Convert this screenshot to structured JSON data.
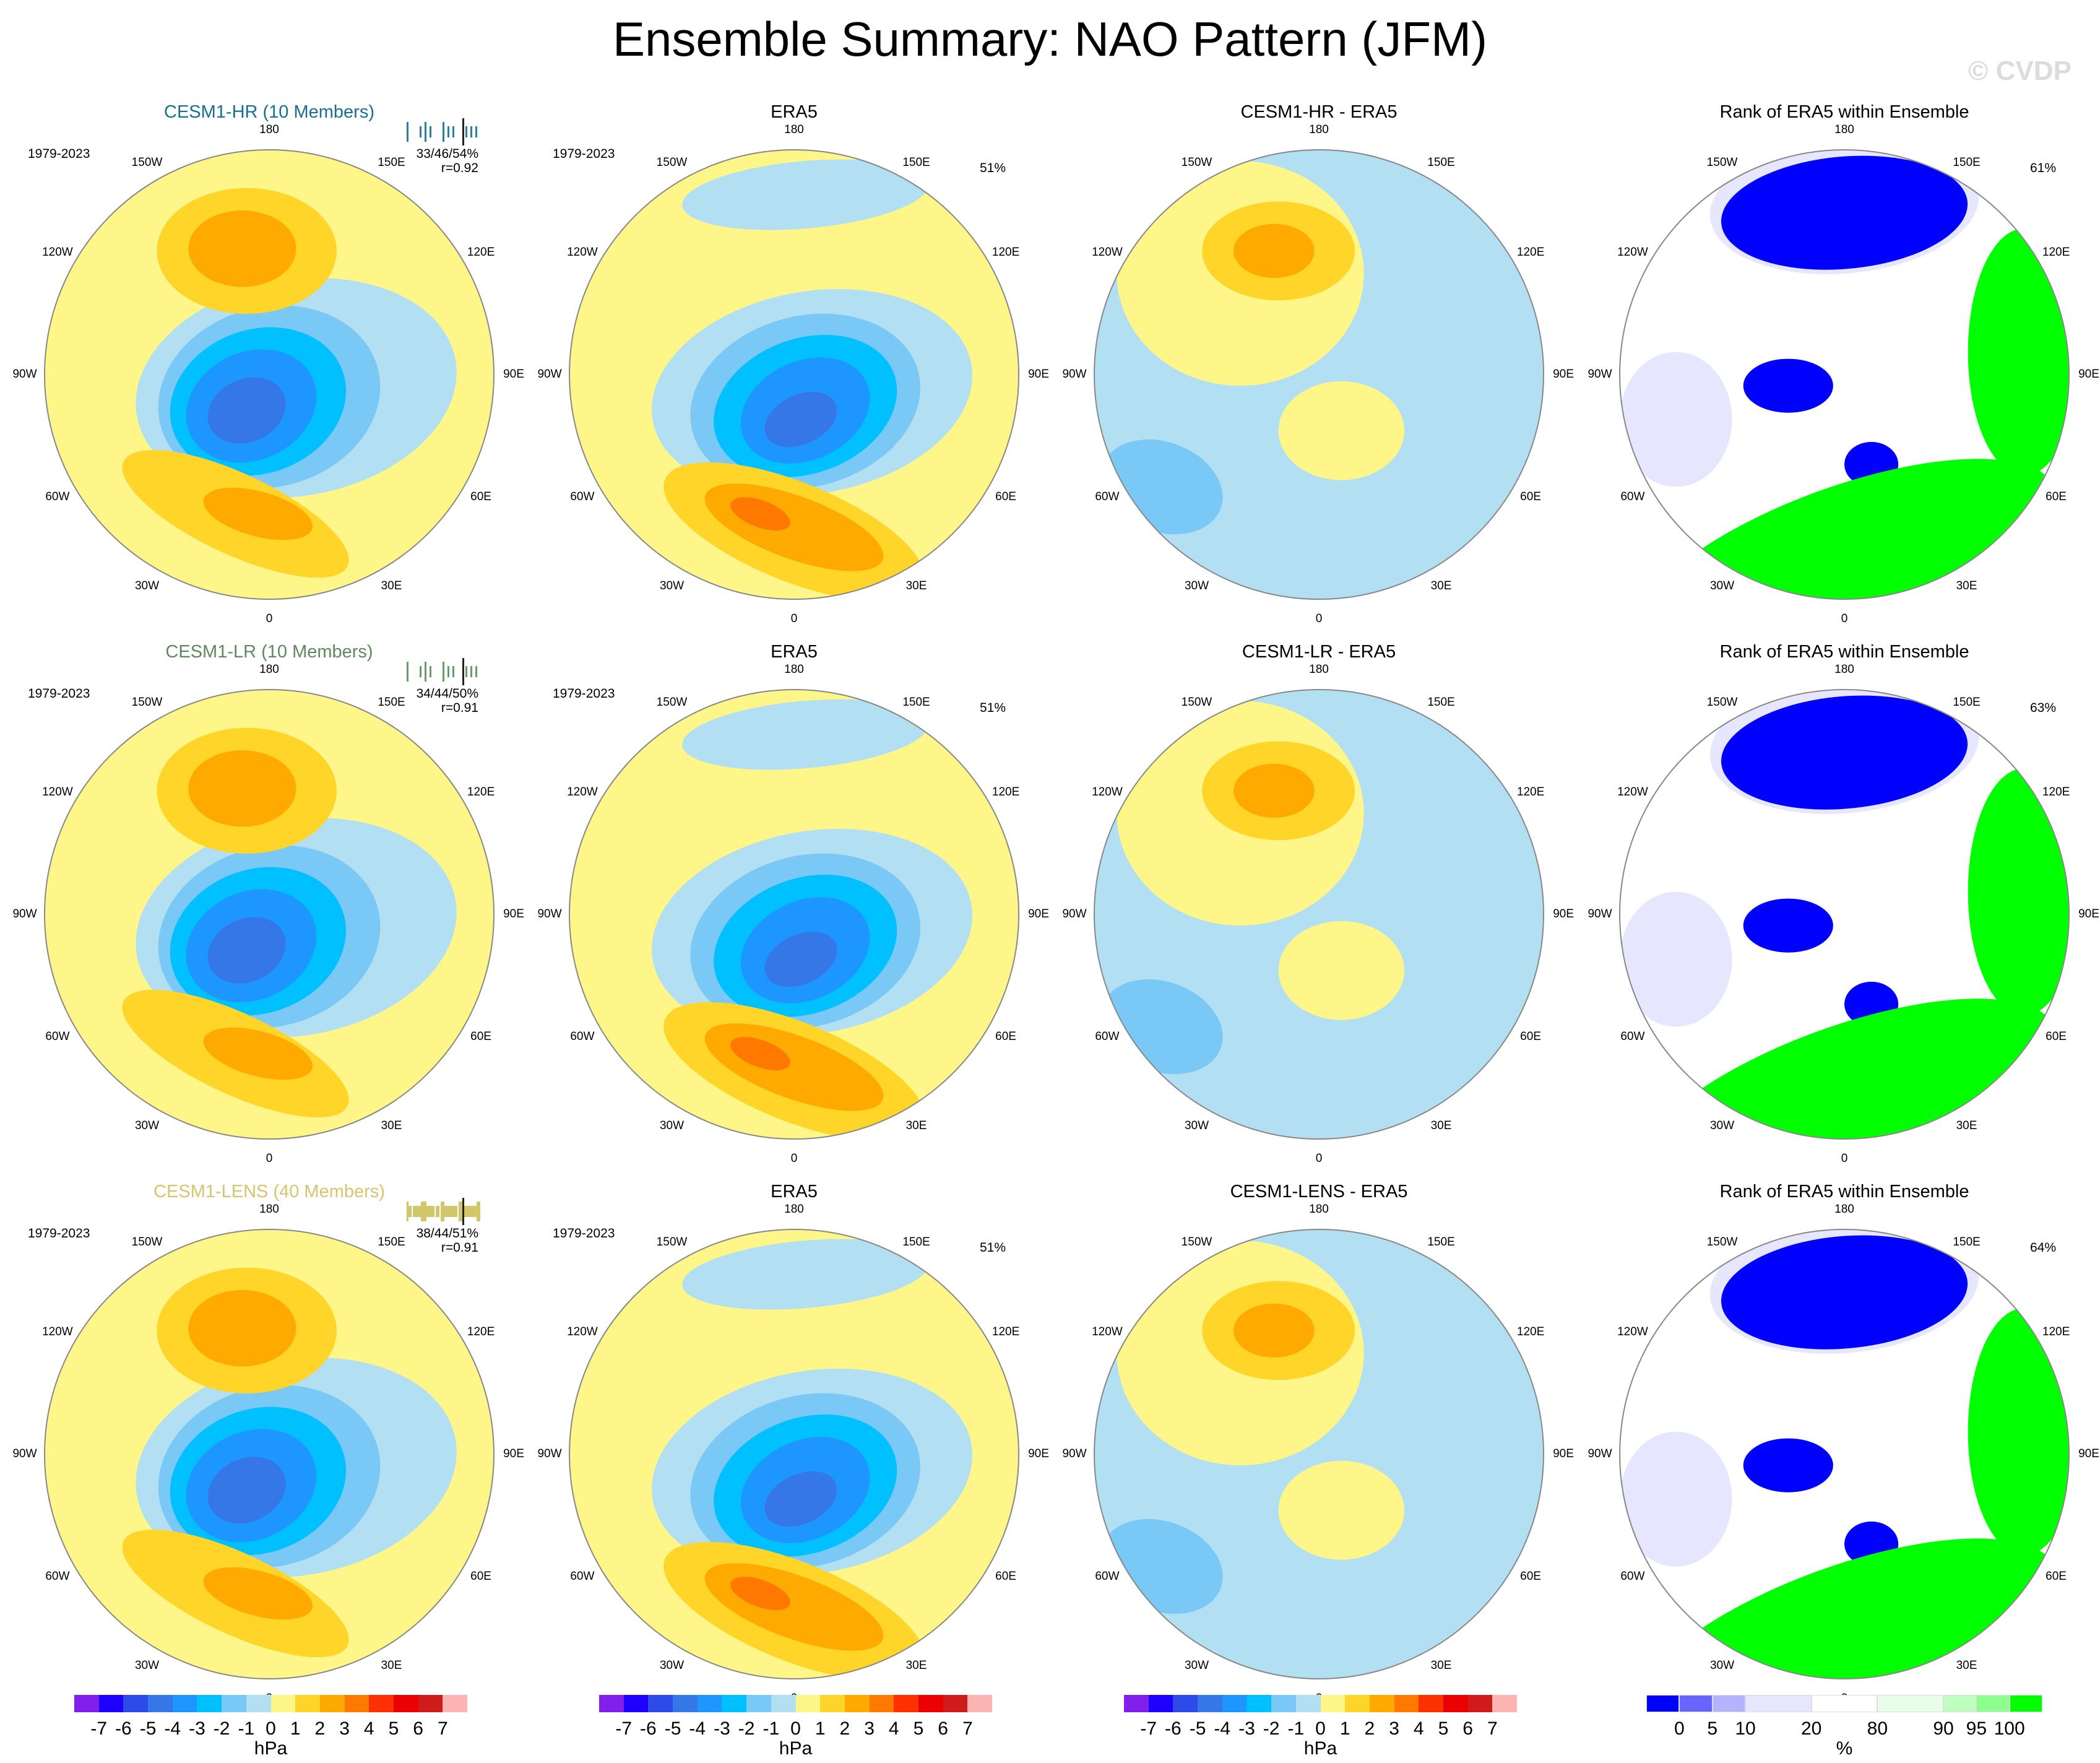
{
  "title": "Ensemble Summary: NAO Pattern (JFM)",
  "watermark": "© CVDP",
  "lon_labels": [
    "180",
    "150E",
    "120E",
    "90E",
    "60E",
    "30E",
    "0",
    "30W",
    "60W",
    "90W",
    "120W",
    "150W"
  ],
  "chart_data": [
    {
      "type": "heatmap",
      "kind": "model",
      "title": "CESM1-HR (10 Members)",
      "title_color": "#16708e",
      "period": "1979-2023",
      "stats": "33/46/54%",
      "corr": "r=0.92",
      "tick_color": "#2a7f9e"
    },
    {
      "type": "heatmap",
      "kind": "obs",
      "title": "ERA5",
      "period": "1979-2023",
      "pct": "51%"
    },
    {
      "type": "heatmap",
      "kind": "diff",
      "title": "CESM1-HR - ERA5"
    },
    {
      "type": "heatmap",
      "kind": "rank",
      "title": "Rank of ERA5 within Ensemble",
      "pct": "61%"
    },
    {
      "type": "heatmap",
      "kind": "model",
      "title": "CESM1-LR (10 Members)",
      "title_color": "#5f8a5f",
      "period": "1979-2023",
      "stats": "34/44/50%",
      "corr": "r=0.91",
      "tick_color": "#6b9a6b"
    },
    {
      "type": "heatmap",
      "kind": "obs",
      "title": "ERA5",
      "period": "1979-2023",
      "pct": "51%"
    },
    {
      "type": "heatmap",
      "kind": "diff",
      "title": "CESM1-LR - ERA5"
    },
    {
      "type": "heatmap",
      "kind": "rank",
      "title": "Rank of ERA5 within Ensemble",
      "pct": "63%"
    },
    {
      "type": "heatmap",
      "kind": "model",
      "title": "CESM1-LENS (40 Members)",
      "title_color": "#d6c56e",
      "period": "1979-2023",
      "stats": "38/44/51%",
      "corr": "r=0.91",
      "tick_color": "#d2c66a"
    },
    {
      "type": "heatmap",
      "kind": "obs",
      "title": "ERA5",
      "period": "1979-2023",
      "pct": "51%"
    },
    {
      "type": "heatmap",
      "kind": "diff",
      "title": "CESM1-LENS - ERA5"
    },
    {
      "type": "heatmap",
      "kind": "rank",
      "title": "Rank of ERA5 within Ensemble",
      "pct": "64%"
    }
  ],
  "colorbar_hpa": {
    "unit": "hPa",
    "labels": [
      "-7",
      "-6",
      "-5",
      "-4",
      "-3",
      "-2",
      "-1",
      "0",
      "1",
      "2",
      "3",
      "4",
      "5",
      "6",
      "7"
    ],
    "colors": [
      "#8020ea",
      "#1e00ff",
      "#2d4be8",
      "#3677e8",
      "#1e96ff",
      "#00c0ff",
      "#7ac8f5",
      "#b3dff3",
      "#fff68a",
      "#ffd52a",
      "#ffaa00",
      "#ff7800",
      "#ff3000",
      "#eb0000",
      "#cf1b1b",
      "#ffb4b4"
    ]
  },
  "colorbar_rank": {
    "unit": "%",
    "labels": [
      "0",
      "5",
      "10",
      "20",
      "80",
      "90",
      "95",
      "100"
    ],
    "colors": [
      "#0000ff",
      "#6666ff",
      "#b3b3ff",
      "#e6e6ff",
      "#ffffff",
      "#e6ffe6",
      "#bfffbf",
      "#8cff8c",
      "#00ff00"
    ]
  }
}
